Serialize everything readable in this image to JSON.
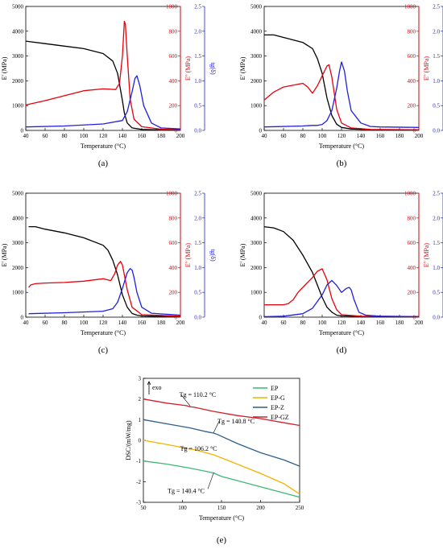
{
  "dma": {
    "xlabel": "Temperature (°C)",
    "y1label": "E' (MPa)",
    "y2label": "E'' (MPa)",
    "y3label": "tg(δ)",
    "xticks": [
      "40",
      "60",
      "80",
      "100",
      "120",
      "140",
      "160",
      "180",
      "200"
    ],
    "y1ticks": [
      "0",
      "1000",
      "2000",
      "3000",
      "4000",
      "5000"
    ],
    "y2ticks": [
      "0",
      "200",
      "400",
      "600",
      "800",
      "1000"
    ],
    "y3ticks": [
      "0.0",
      "0.5",
      "1.0",
      "1.5",
      "2.0",
      "2.5"
    ],
    "colors": {
      "storage": "#000000",
      "loss": "#e8000b",
      "tan": "#1f1fe0"
    }
  },
  "dsc": {
    "ylabel": "DSC/(mW/mg)",
    "xlabel": "Temperature (°C)",
    "exo_label": "exo",
    "xticks": [
      "50",
      "100",
      "150",
      "200",
      "250"
    ],
    "yticks": [
      "3",
      "2",
      "1",
      "0",
      "-1",
      "-2",
      "-3"
    ],
    "annotations": [
      {
        "text": "Tg = 110.2 °C"
      },
      {
        "text": "Tg = 140.8 °C"
      },
      {
        "text": "Tg = 106.2 °C"
      },
      {
        "text": "Tg = 140.4 °C"
      }
    ],
    "legend": [
      {
        "name": "EP",
        "color": "#3cb878"
      },
      {
        "name": "EP-G",
        "color": "#f0b400"
      },
      {
        "name": "EP-Z",
        "color": "#2c5f8a"
      },
      {
        "name": "EP-GZ",
        "color": "#d0202a"
      }
    ]
  },
  "panel_labels": [
    "(a)",
    "(b)",
    "(c)",
    "(d)",
    "(e)"
  ],
  "chart_data": [
    {
      "type": "line",
      "panel": "(a)",
      "xlim": [
        40,
        200
      ],
      "y1lim": [
        0,
        5000
      ],
      "y2lim": [
        0,
        1000
      ],
      "y3lim": [
        0,
        2.5
      ],
      "series": [
        {
          "axis": "y1",
          "x": [
            40,
            60,
            80,
            100,
            120,
            130,
            135,
            140,
            142,
            145,
            150,
            160,
            180,
            200
          ],
          "y": [
            3600,
            3500,
            3400,
            3300,
            3100,
            2800,
            2300,
            1200,
            700,
            300,
            100,
            40,
            20,
            15
          ]
        },
        {
          "axis": "y2",
          "x": [
            40,
            60,
            80,
            100,
            120,
            133,
            137,
            140,
            142,
            143,
            145,
            148,
            152,
            160,
            180,
            200
          ],
          "y": [
            205,
            240,
            280,
            320,
            335,
            330,
            380,
            600,
            880,
            860,
            600,
            250,
            90,
            30,
            10,
            5
          ]
        },
        {
          "axis": "y3",
          "x": [
            40,
            80,
            120,
            140,
            145,
            150,
            153,
            155,
            158,
            162,
            170,
            180,
            200
          ],
          "y": [
            0.07,
            0.09,
            0.13,
            0.2,
            0.38,
            0.78,
            1.05,
            1.1,
            0.9,
            0.5,
            0.15,
            0.05,
            0.03
          ]
        }
      ]
    },
    {
      "type": "line",
      "panel": "(b)",
      "xlim": [
        40,
        200
      ],
      "y1lim": [
        0,
        5000
      ],
      "y2lim": [
        0,
        1000
      ],
      "y3lim": [
        0,
        2.5
      ],
      "series": [
        {
          "axis": "y1",
          "x": [
            40,
            50,
            60,
            80,
            90,
            95,
            100,
            105,
            110,
            115,
            120,
            130,
            150,
            200
          ],
          "y": [
            3850,
            3850,
            3750,
            3550,
            3300,
            2900,
            2300,
            1300,
            600,
            250,
            120,
            60,
            30,
            20
          ]
        },
        {
          "axis": "y2",
          "x": [
            40,
            50,
            60,
            80,
            85,
            90,
            95,
            100,
            105,
            107,
            110,
            115,
            120,
            130,
            150,
            200
          ],
          "y": [
            245,
            310,
            350,
            380,
            350,
            300,
            360,
            440,
            520,
            530,
            430,
            170,
            60,
            20,
            8,
            5
          ]
        },
        {
          "axis": "y3",
          "x": [
            40,
            80,
            90,
            95,
            100,
            105,
            110,
            115,
            118,
            120,
            123,
            126,
            130,
            140,
            150,
            160,
            200
          ],
          "y": [
            0.07,
            0.09,
            0.1,
            0.1,
            0.12,
            0.2,
            0.4,
            0.85,
            1.2,
            1.38,
            1.2,
            0.8,
            0.4,
            0.15,
            0.08,
            0.07,
            0.06
          ]
        }
      ]
    },
    {
      "type": "line",
      "panel": "(c)",
      "xlim": [
        40,
        200
      ],
      "y1lim": [
        0,
        5000
      ],
      "y2lim": [
        0,
        1000
      ],
      "y3lim": [
        0,
        2.5
      ],
      "series": [
        {
          "axis": "y1",
          "x": [
            43,
            50,
            60,
            80,
            100,
            120,
            125,
            130,
            135,
            140,
            145,
            150,
            155,
            160,
            170,
            200
          ],
          "y": [
            3650,
            3650,
            3550,
            3400,
            3200,
            2900,
            2700,
            2300,
            1700,
            900,
            400,
            150,
            80,
            50,
            40,
            30
          ]
        },
        {
          "axis": "y2",
          "x": [
            43,
            45,
            50,
            60,
            80,
            100,
            120,
            128,
            132,
            135,
            138,
            140,
            145,
            150,
            160,
            200
          ],
          "y": [
            240,
            260,
            270,
            275,
            280,
            290,
            310,
            295,
            350,
            420,
            450,
            420,
            220,
            80,
            20,
            8
          ]
        },
        {
          "axis": "y3",
          "x": [
            43,
            80,
            120,
            130,
            135,
            140,
            145,
            148,
            150,
            152,
            155,
            160,
            170,
            200
          ],
          "y": [
            0.07,
            0.09,
            0.12,
            0.17,
            0.3,
            0.58,
            0.9,
            0.98,
            0.95,
            0.8,
            0.5,
            0.2,
            0.08,
            0.04
          ]
        }
      ]
    },
    {
      "type": "line",
      "panel": "(d)",
      "xlim": [
        40,
        200
      ],
      "y1lim": [
        0,
        5000
      ],
      "y2lim": [
        0,
        1000
      ],
      "y3lim": [
        0,
        2.5
      ],
      "series": [
        {
          "axis": "y1",
          "x": [
            40,
            50,
            60,
            70,
            80,
            90,
            95,
            100,
            105,
            110,
            115,
            120,
            140,
            200
          ],
          "y": [
            3650,
            3600,
            3450,
            3100,
            2500,
            1800,
            1300,
            800,
            400,
            200,
            80,
            50,
            30,
            20
          ]
        },
        {
          "axis": "y2",
          "x": [
            40,
            50,
            60,
            65,
            70,
            75,
            80,
            90,
            95,
            100,
            105,
            110,
            115,
            120,
            140,
            200
          ],
          "y": [
            100,
            100,
            100,
            110,
            140,
            200,
            240,
            320,
            370,
            390,
            300,
            150,
            60,
            20,
            8,
            5
          ]
        },
        {
          "axis": "y3",
          "x": [
            40,
            60,
            80,
            90,
            100,
            105,
            110,
            115,
            120,
            125,
            128,
            130,
            133,
            138,
            145,
            160,
            200
          ],
          "y": [
            0.01,
            0.02,
            0.07,
            0.18,
            0.45,
            0.65,
            0.74,
            0.64,
            0.5,
            0.58,
            0.6,
            0.55,
            0.35,
            0.1,
            0.04,
            0.02,
            0.01
          ]
        }
      ]
    },
    {
      "type": "line",
      "panel": "(e)",
      "xlim": [
        50,
        250
      ],
      "ylim": [
        -3,
        3
      ],
      "series": [
        {
          "name": "EP",
          "x": [
            50,
            80,
            110,
            130,
            140,
            150,
            170,
            200,
            220,
            250
          ],
          "y": [
            -1.0,
            -1.15,
            -1.35,
            -1.5,
            -1.58,
            -1.75,
            -1.95,
            -2.25,
            -2.45,
            -2.75
          ]
        },
        {
          "name": "EP-G",
          "x": [
            50,
            80,
            100,
            106,
            115,
            140,
            170,
            200,
            230,
            250
          ],
          "y": [
            0.0,
            -0.2,
            -0.35,
            -0.4,
            -0.45,
            -0.7,
            -1.15,
            -1.6,
            -2.1,
            -2.6
          ]
        },
        {
          "name": "EP-Z",
          "x": [
            50,
            80,
            110,
            130,
            140,
            145,
            170,
            200,
            230,
            250
          ],
          "y": [
            1.0,
            0.8,
            0.6,
            0.42,
            0.35,
            0.28,
            -0.15,
            -0.6,
            -0.95,
            -1.25
          ]
        },
        {
          "name": "EP-GZ",
          "x": [
            50,
            80,
            105,
            110,
            115,
            140,
            170,
            200,
            230,
            250
          ],
          "y": [
            2.0,
            1.8,
            1.68,
            1.62,
            1.6,
            1.4,
            1.2,
            1.05,
            0.85,
            0.72
          ]
        }
      ]
    }
  ]
}
